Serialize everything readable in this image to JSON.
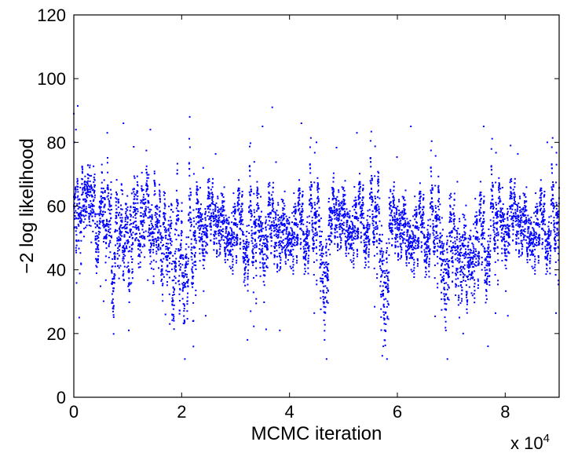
{
  "chart_data": {
    "type": "scatter",
    "title": "",
    "xlabel": "MCMC iteration",
    "ylabel": "−2 log likelihood",
    "x_multiplier": "x 10",
    "x_multiplier_exponent": "4",
    "xlim": [
      0,
      9
    ],
    "ylim": [
      0,
      120
    ],
    "x_ticks": [
      0,
      2,
      4,
      6,
      8
    ],
    "y_ticks": [
      0,
      20,
      40,
      60,
      80,
      100,
      120
    ],
    "grid": false,
    "marker_color": "#0000ff",
    "points_count": 6000,
    "notable_points": {
      "x": [
        0.0,
        0.01,
        0.04,
        0.1,
        0.62,
        0.92,
        1.02,
        1.42,
        1.7,
        1.78,
        2.15,
        2.22,
        2.4,
        3.22,
        3.28,
        3.5,
        3.68,
        3.82,
        4.22,
        4.5,
        4.65,
        5.25,
        5.72,
        5.74,
        6.25,
        6.9,
        7.15,
        7.22,
        7.6,
        7.68,
        8.1,
        8.78,
        8.95
      ],
      "y": [
        89,
        80,
        84,
        25,
        83,
        86,
        21,
        84,
        26,
        23,
        88,
        24,
        72,
        18,
        27,
        85,
        91,
        21,
        86,
        80,
        18,
        83,
        13,
        16,
        85,
        21,
        25,
        20,
        85,
        16,
        79,
        80,
        73
      ]
    },
    "segments": [
      {
        "x_start": 0.0,
        "x_end": 0.55,
        "mean": 57,
        "spread": 7
      },
      {
        "x_start": 0.55,
        "x_end": 1.05,
        "mean": 53,
        "spread": 9
      },
      {
        "x_start": 1.05,
        "x_end": 1.6,
        "mean": 55,
        "spread": 8
      },
      {
        "x_start": 1.6,
        "x_end": 2.25,
        "mean": 49,
        "spread": 10
      },
      {
        "x_start": 2.25,
        "x_end": 3.15,
        "mean": 56,
        "spread": 7
      },
      {
        "x_start": 3.15,
        "x_end": 3.9,
        "mean": 53,
        "spread": 8
      },
      {
        "x_start": 3.9,
        "x_end": 4.55,
        "mean": 56,
        "spread": 7
      },
      {
        "x_start": 4.55,
        "x_end": 4.75,
        "mean": 45,
        "spread": 10
      },
      {
        "x_start": 4.75,
        "x_end": 5.65,
        "mean": 58,
        "spread": 7
      },
      {
        "x_start": 5.65,
        "x_end": 5.85,
        "mean": 43,
        "spread": 12
      },
      {
        "x_start": 5.85,
        "x_end": 6.75,
        "mean": 55,
        "spread": 7
      },
      {
        "x_start": 6.75,
        "x_end": 7.3,
        "mean": 46,
        "spread": 10
      },
      {
        "x_start": 7.3,
        "x_end": 7.7,
        "mean": 52,
        "spread": 9
      },
      {
        "x_start": 7.7,
        "x_end": 9.0,
        "mean": 56,
        "spread": 7
      }
    ]
  }
}
